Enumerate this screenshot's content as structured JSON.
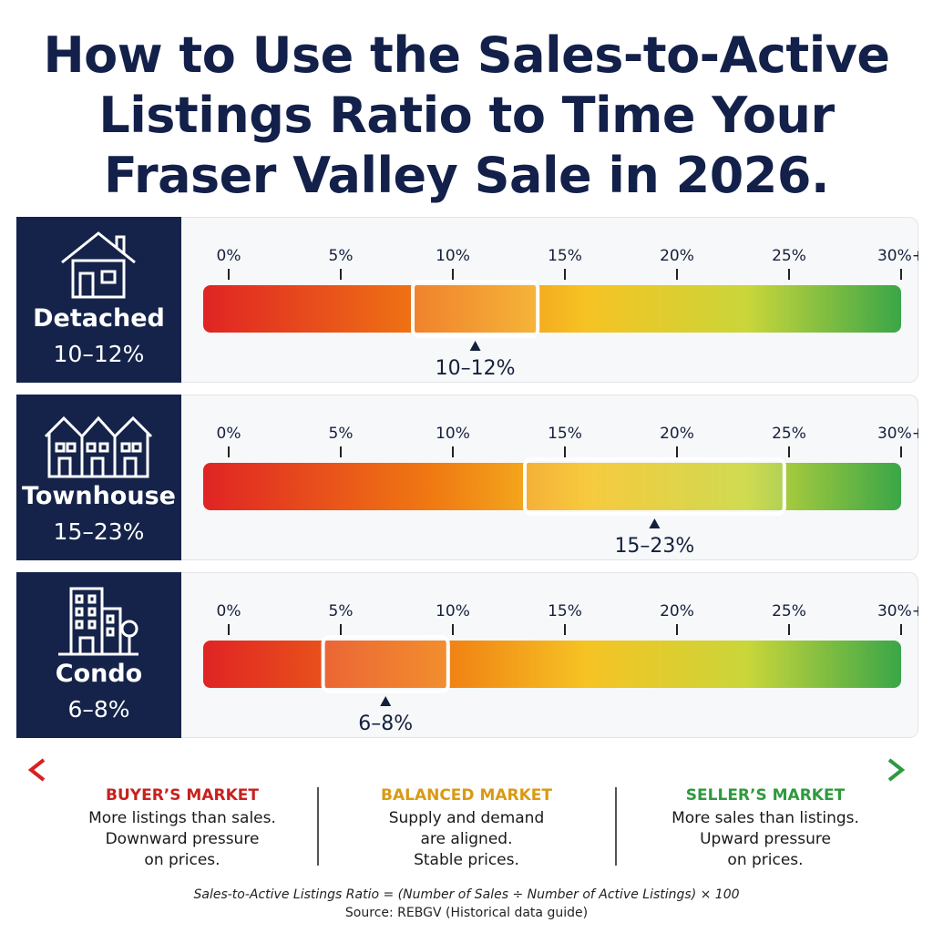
{
  "title": "How to Use the Sales-to-Active Listings Ratio to Time Your Fraser Valley Sale in 2026.",
  "chart_data": {
    "type": "bar",
    "scale": {
      "min": 0,
      "max": 30,
      "ticks": [
        "0%",
        "5%",
        "10%",
        "15%",
        "20%",
        "25%",
        "30%+"
      ],
      "tick_values": [
        0,
        5,
        10,
        15,
        20,
        25,
        30
      ]
    },
    "gradient_colors": [
      "#e02424",
      "#f07a12",
      "#f6c324",
      "#c9d63a",
      "#3aa648"
    ],
    "rows": [
      {
        "name": "Detached",
        "range_label": "10–12%",
        "low": 10,
        "high": 12,
        "icon": "house-icon"
      },
      {
        "name": "Townhouse",
        "range_label": "15–23%",
        "low": 15,
        "high": 23,
        "icon": "townhouse-icon"
      },
      {
        "name": "Condo",
        "range_label": "6–8%",
        "low": 6,
        "high": 8,
        "icon": "condo-building-icon"
      }
    ]
  },
  "legend": {
    "buyer": {
      "title": "BUYER’S MARKET",
      "lines": [
        "More listings than sales.",
        "Downward pressure",
        "on prices."
      ],
      "color": "#c8211f"
    },
    "balanced": {
      "title": "BALANCED MARKET",
      "lines": [
        "Supply and demand",
        "are aligned.",
        "Stable prices."
      ],
      "color": "#d99a12"
    },
    "seller": {
      "title": "SELLER’S MARKET",
      "lines": [
        "More sales than listings.",
        "Upward pressure",
        "on prices."
      ],
      "color": "#2e9a3e"
    }
  },
  "footer": {
    "formula": "Sales-to-Active Listings Ratio = (Number of Sales ÷ Number of Active Listings) × 100",
    "source": "Source: REBGV (Historical data guide)"
  }
}
